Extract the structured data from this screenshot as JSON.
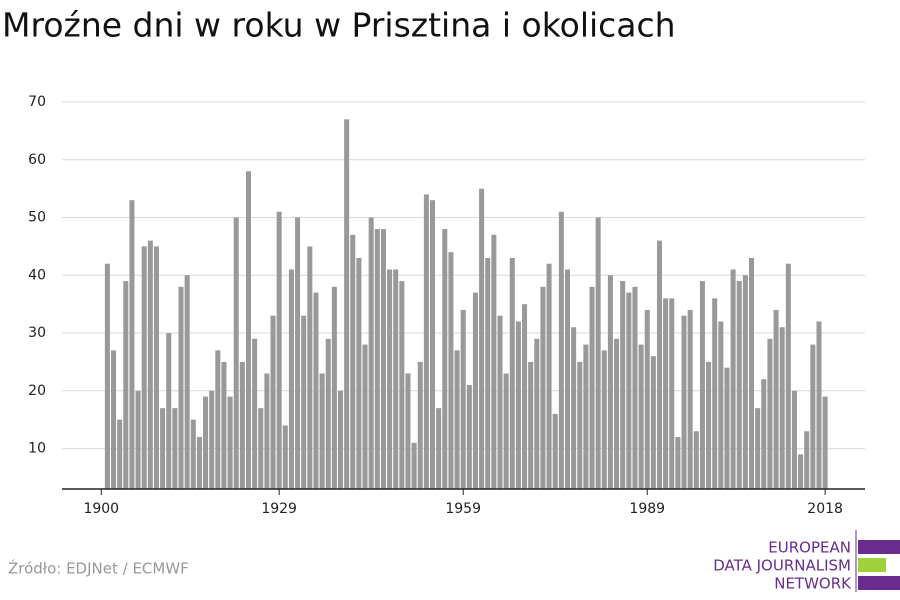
{
  "chart_data": {
    "type": "bar",
    "title": "Mroźne dni w roku w Prisztina i okolicach",
    "source": "Źródło: EDJNet / ECMWF",
    "logo": [
      "EUROPEAN",
      "DATA JOURNALISM",
      "NETWORK"
    ],
    "color": "#999999",
    "x": [
      1901,
      1902,
      1903,
      1904,
      1905,
      1906,
      1907,
      1908,
      1909,
      1910,
      1911,
      1912,
      1913,
      1914,
      1915,
      1916,
      1917,
      1918,
      1919,
      1920,
      1921,
      1922,
      1923,
      1924,
      1925,
      1926,
      1927,
      1928,
      1929,
      1930,
      1931,
      1932,
      1933,
      1934,
      1935,
      1936,
      1937,
      1938,
      1939,
      1940,
      1941,
      1942,
      1943,
      1944,
      1945,
      1946,
      1947,
      1948,
      1949,
      1950,
      1951,
      1952,
      1953,
      1954,
      1955,
      1956,
      1957,
      1958,
      1959,
      1960,
      1961,
      1962,
      1963,
      1964,
      1965,
      1966,
      1967,
      1968,
      1969,
      1970,
      1971,
      1972,
      1973,
      1974,
      1975,
      1976,
      1977,
      1978,
      1979,
      1980,
      1981,
      1982,
      1983,
      1984,
      1985,
      1986,
      1987,
      1988,
      1989,
      1990,
      1991,
      1992,
      1993,
      1994,
      1995,
      1996,
      1997,
      1998,
      1999,
      2000,
      2001,
      2002,
      2003,
      2004,
      2005,
      2006,
      2007,
      2008,
      2009,
      2010,
      2011,
      2012,
      2013,
      2014,
      2015,
      2016,
      2017,
      2018
    ],
    "values": [
      42,
      27,
      15,
      39,
      53,
      20,
      45,
      46,
      45,
      17,
      30,
      17,
      38,
      40,
      15,
      12,
      19,
      20,
      27,
      25,
      19,
      50,
      25,
      58,
      29,
      17,
      23,
      33,
      51,
      14,
      41,
      50,
      33,
      45,
      37,
      23,
      29,
      38,
      20,
      67,
      47,
      43,
      28,
      50,
      48,
      48,
      41,
      41,
      39,
      23,
      11,
      25,
      54,
      53,
      17,
      48,
      44,
      27,
      34,
      21,
      37,
      55,
      43,
      47,
      33,
      23,
      43,
      32,
      35,
      25,
      29,
      38,
      42,
      16,
      51,
      41,
      31,
      25,
      28,
      38,
      50,
      27,
      40,
      29,
      39,
      37,
      38,
      28,
      34,
      26,
      46,
      36,
      36,
      12,
      33,
      34,
      13,
      39,
      25,
      36,
      32,
      24,
      41,
      39,
      40,
      43,
      17,
      22,
      29,
      34,
      31,
      42,
      20,
      9,
      13,
      28,
      32,
      19
    ],
    "xlim": [
      1893.6,
      2024.5
    ],
    "xticks": [
      1900,
      1929,
      1959,
      1989,
      2018
    ],
    "ylim": [
      3,
      70
    ],
    "yticks": [
      10,
      20,
      30,
      40,
      50,
      60,
      70
    ],
    "grid": true
  }
}
